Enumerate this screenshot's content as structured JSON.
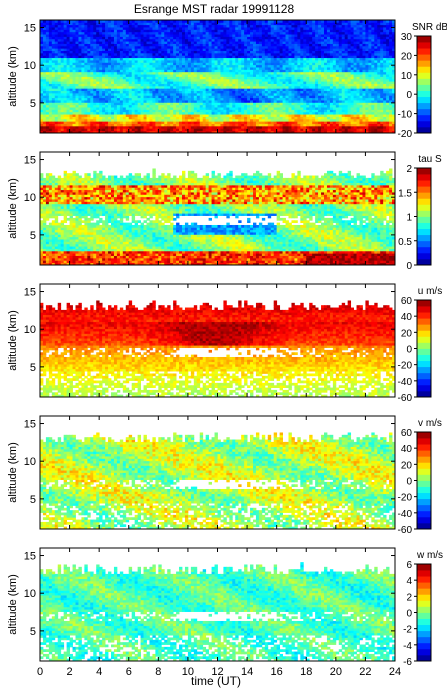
{
  "title": "Esrange MST radar 19991128",
  "xlabel": "time (UT)",
  "x_ticks": [
    "0",
    "2",
    "4",
    "6",
    "8",
    "10",
    "12",
    "14",
    "16",
    "18",
    "20",
    "22",
    "24"
  ],
  "chart_data": [
    {
      "type": "heatmap",
      "title": "Esrange MST radar 19991128",
      "ylabel": "altitude (km)",
      "xlim": [
        0,
        24
      ],
      "ylim": [
        1,
        16
      ],
      "y_ticks": [
        5,
        10,
        15
      ],
      "colorbar": {
        "label": "SNR dB",
        "range": [
          -20,
          30
        ],
        "ticks": [
          -20,
          -10,
          0,
          10,
          20,
          30
        ]
      },
      "colormap": "jet"
    },
    {
      "type": "heatmap",
      "ylabel": "altitude (km)",
      "xlim": [
        0,
        24
      ],
      "ylim": [
        1,
        16
      ],
      "y_ticks": [
        5,
        10,
        15
      ],
      "colorbar": {
        "label": "tau S",
        "range": [
          0,
          2
        ],
        "ticks": [
          0,
          0.5,
          1,
          1.5,
          2
        ]
      },
      "colormap": "jet"
    },
    {
      "type": "heatmap",
      "ylabel": "altitude (km)",
      "xlim": [
        0,
        24
      ],
      "ylim": [
        1,
        16
      ],
      "y_ticks": [
        5,
        10,
        15
      ],
      "colorbar": {
        "label": "u m/s",
        "range": [
          -60,
          60
        ],
        "ticks": [
          -60,
          -40,
          -20,
          0,
          20,
          40,
          60
        ]
      },
      "colormap": "jet"
    },
    {
      "type": "heatmap",
      "ylabel": "altitude (km)",
      "xlim": [
        0,
        24
      ],
      "ylim": [
        1,
        16
      ],
      "y_ticks": [
        5,
        10,
        15
      ],
      "colorbar": {
        "label": "v m/s",
        "range": [
          -60,
          60
        ],
        "ticks": [
          -60,
          -40,
          -20,
          0,
          20,
          40,
          60
        ]
      },
      "colormap": "jet"
    },
    {
      "type": "heatmap",
      "ylabel": "altitude (km)",
      "xlabel": "time (UT)",
      "xlim": [
        0,
        24
      ],
      "ylim": [
        1,
        16
      ],
      "y_ticks": [
        5,
        10,
        15
      ],
      "colorbar": {
        "label": "w m/s",
        "range": [
          -6,
          6
        ],
        "ticks": [
          -6,
          -4,
          -2,
          0,
          2,
          4,
          6
        ]
      },
      "colormap": "jet"
    }
  ]
}
